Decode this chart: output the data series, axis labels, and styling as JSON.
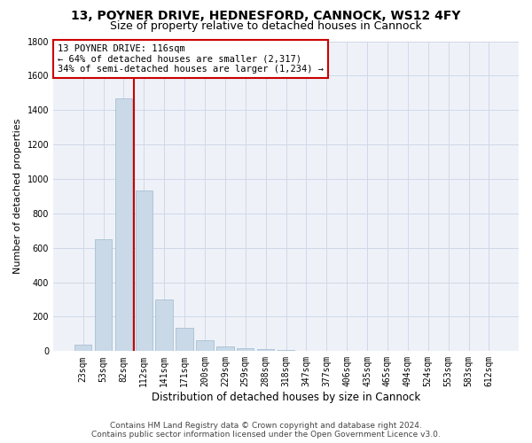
{
  "title_line1": "13, POYNER DRIVE, HEDNESFORD, CANNOCK, WS12 4FY",
  "title_line2": "Size of property relative to detached houses in Cannock",
  "xlabel": "Distribution of detached houses by size in Cannock",
  "ylabel": "Number of detached properties",
  "categories": [
    "23sqm",
    "53sqm",
    "82sqm",
    "112sqm",
    "141sqm",
    "171sqm",
    "200sqm",
    "229sqm",
    "259sqm",
    "288sqm",
    "318sqm",
    "347sqm",
    "377sqm",
    "406sqm",
    "435sqm",
    "465sqm",
    "494sqm",
    "524sqm",
    "553sqm",
    "583sqm",
    "612sqm"
  ],
  "values": [
    40,
    650,
    1470,
    935,
    300,
    135,
    65,
    25,
    15,
    10,
    5,
    0,
    0,
    0,
    0,
    0,
    0,
    0,
    0,
    0,
    0
  ],
  "bar_color": "#c9d9e8",
  "bar_edge_color": "#a0b8cc",
  "vline_color": "#cc0000",
  "annotation_text": "13 POYNER DRIVE: 116sqm\n← 64% of detached houses are smaller (2,317)\n34% of semi-detached houses are larger (1,234) →",
  "annotation_box_color": "#ffffff",
  "annotation_box_edge": "#cc0000",
  "ylim": [
    0,
    1800
  ],
  "yticks": [
    0,
    200,
    400,
    600,
    800,
    1000,
    1200,
    1400,
    1600,
    1800
  ],
  "grid_color": "#d0d8e8",
  "bg_color": "#eef2f8",
  "footer_line1": "Contains HM Land Registry data © Crown copyright and database right 2024.",
  "footer_line2": "Contains public sector information licensed under the Open Government Licence v3.0.",
  "title_fontsize": 10,
  "subtitle_fontsize": 9,
  "xlabel_fontsize": 8.5,
  "ylabel_fontsize": 8,
  "tick_fontsize": 7,
  "annotation_fontsize": 7.5,
  "footer_fontsize": 6.5
}
